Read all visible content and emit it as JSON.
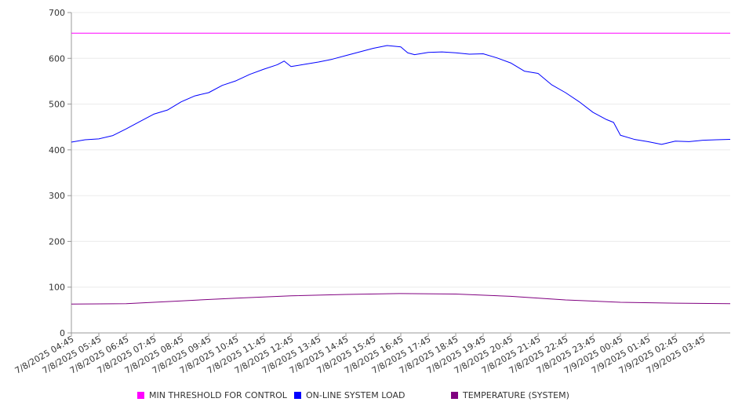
{
  "chart_data": {
    "type": "line",
    "title": "",
    "xlabel": "",
    "ylabel": "",
    "ylim": [
      0,
      700
    ],
    "yticks": [
      0,
      100,
      200,
      300,
      400,
      500,
      600,
      700
    ],
    "x_tick_labels": [
      "7/8/2025 04:45",
      "7/8/2025 05:45",
      "7/8/2025 06:45",
      "7/8/2025 07:45",
      "7/8/2025 08:45",
      "7/8/2025 09:45",
      "7/8/2025 10:45",
      "7/8/2025 11:45",
      "7/8/2025 12:45",
      "7/8/2025 13:45",
      "7/8/2025 14:45",
      "7/8/2025 15:45",
      "7/8/2025 16:45",
      "7/8/2025 17:45",
      "7/8/2025 18:45",
      "7/8/2025 19:45",
      "7/8/2025 20:45",
      "7/8/2025 21:45",
      "7/8/2025 22:45",
      "7/8/2025 23:45",
      "7/9/2025 00:45",
      "7/9/2025 01:45",
      "7/9/2025 02:45",
      "7/9/2025 03:45"
    ],
    "grid": true,
    "legend_position": "bottom",
    "series": [
      {
        "name": "MIN THRESHOLD FOR CONTROL",
        "color": "#ff00ff",
        "x": [
          "7/8/2025 04:45",
          "7/9/2025 04:45"
        ],
        "values": [
          655,
          655
        ]
      },
      {
        "name": "ON-LINE SYSTEM LOAD",
        "color": "#0000ff",
        "x": [
          "7/8/2025 04:45",
          "7/8/2025 05:15",
          "7/8/2025 05:45",
          "7/8/2025 06:15",
          "7/8/2025 06:45",
          "7/8/2025 07:15",
          "7/8/2025 07:45",
          "7/8/2025 08:15",
          "7/8/2025 08:45",
          "7/8/2025 09:15",
          "7/8/2025 09:45",
          "7/8/2025 10:15",
          "7/8/2025 10:45",
          "7/8/2025 11:15",
          "7/8/2025 11:45",
          "7/8/2025 12:15",
          "7/8/2025 12:30",
          "7/8/2025 12:45",
          "7/8/2025 13:15",
          "7/8/2025 13:45",
          "7/8/2025 14:15",
          "7/8/2025 14:45",
          "7/8/2025 15:15",
          "7/8/2025 15:45",
          "7/8/2025 16:15",
          "7/8/2025 16:45",
          "7/8/2025 17:00",
          "7/8/2025 17:15",
          "7/8/2025 17:45",
          "7/8/2025 18:15",
          "7/8/2025 18:45",
          "7/8/2025 19:15",
          "7/8/2025 19:45",
          "7/8/2025 20:15",
          "7/8/2025 20:45",
          "7/8/2025 21:15",
          "7/8/2025 21:45",
          "7/8/2025 22:15",
          "7/8/2025 22:45",
          "7/8/2025 23:15",
          "7/8/2025 23:45",
          "7/9/2025 00:15",
          "7/9/2025 00:30",
          "7/9/2025 00:45",
          "7/9/2025 01:15",
          "7/9/2025 01:45",
          "7/9/2025 02:15",
          "7/9/2025 02:45",
          "7/9/2025 03:15",
          "7/9/2025 03:45",
          "7/9/2025 04:15",
          "7/9/2025 04:45"
        ],
        "values": [
          417,
          422,
          424,
          431,
          446,
          462,
          478,
          487,
          505,
          518,
          525,
          541,
          551,
          565,
          576,
          586,
          594,
          582,
          587,
          592,
          598,
          606,
          614,
          622,
          628,
          625,
          612,
          608,
          613,
          614,
          612,
          609,
          610,
          601,
          590,
          572,
          567,
          542,
          525,
          505,
          482,
          466,
          460,
          432,
          423,
          418,
          412,
          419,
          418,
          421,
          422,
          423
        ]
      },
      {
        "name": "TEMPERATURE (SYSTEM)",
        "color": "#800080",
        "x": [
          "7/8/2025 04:45",
          "7/8/2025 06:45",
          "7/8/2025 08:45",
          "7/8/2025 10:45",
          "7/8/2025 12:45",
          "7/8/2025 14:45",
          "7/8/2025 16:45",
          "7/8/2025 18:45",
          "7/8/2025 20:45",
          "7/8/2025 22:45",
          "7/9/2025 00:45",
          "7/9/2025 02:45",
          "7/9/2025 04:45"
        ],
        "values": [
          63,
          64,
          70,
          76,
          81,
          84,
          86,
          85,
          80,
          72,
          67,
          65,
          64
        ]
      }
    ]
  }
}
